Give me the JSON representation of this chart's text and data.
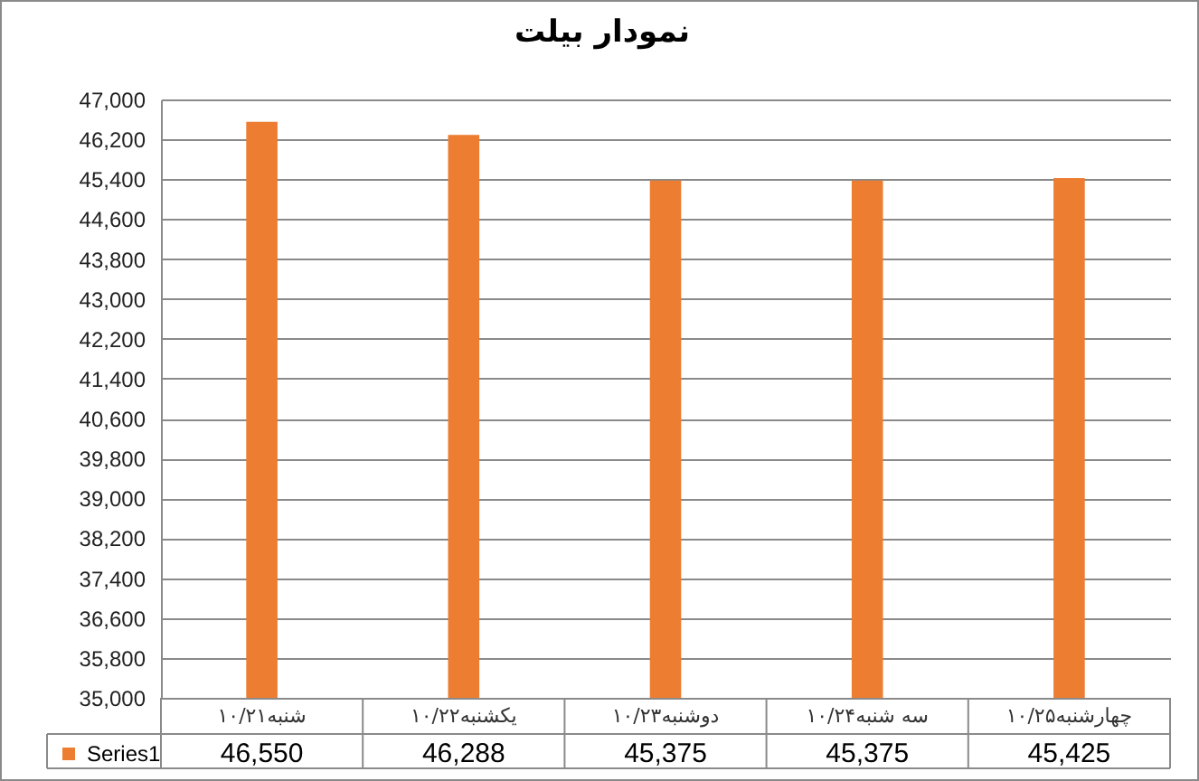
{
  "chart_data": {
    "type": "bar",
    "title": "نمودار بیلت",
    "categories": [
      "شنبه۱۰/۲۱",
      "یکشنبه۱۰/۲۲",
      "دوشنبه۱۰/۲۳",
      "سه شنبه۱۰/۲۴",
      "چهارشنبه۱۰/۲۵"
    ],
    "series": [
      {
        "name": "Series1",
        "color": "#ed7d31",
        "values": [
          46550,
          46288,
          45375,
          45375,
          45425
        ],
        "value_labels": [
          "46,550",
          "46,288",
          "45,375",
          "45,375",
          "45,425"
        ]
      }
    ],
    "ylim": [
      35000,
      47000
    ],
    "yticks": [
      {
        "value": 35000,
        "label": "35,000"
      },
      {
        "value": 35800,
        "label": "35,800"
      },
      {
        "value": 36600,
        "label": "36,600"
      },
      {
        "value": 37400,
        "label": "37,400"
      },
      {
        "value": 38200,
        "label": "38,200"
      },
      {
        "value": 39000,
        "label": "39,000"
      },
      {
        "value": 39800,
        "label": "39,800"
      },
      {
        "value": 40600,
        "label": "40,600"
      },
      {
        "value": 41400,
        "label": "41,400"
      },
      {
        "value": 42200,
        "label": "42,200"
      },
      {
        "value": 43000,
        "label": "43,000"
      },
      {
        "value": 43800,
        "label": "43,800"
      },
      {
        "value": 44600,
        "label": "44,600"
      },
      {
        "value": 45400,
        "label": "45,400"
      },
      {
        "value": 46200,
        "label": "46,200"
      },
      {
        "value": 47000,
        "label": "47,000"
      }
    ],
    "grid": "y",
    "legend": "bottom left"
  }
}
